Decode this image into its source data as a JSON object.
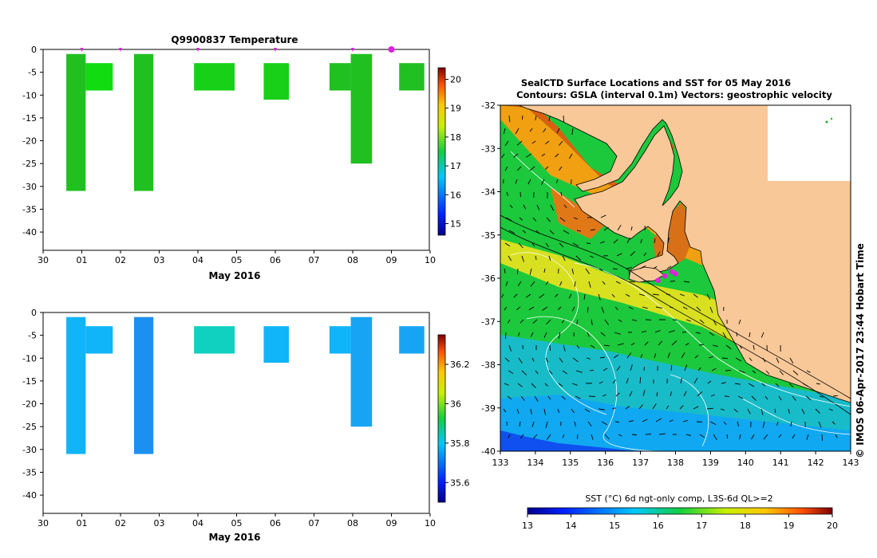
{
  "chart_data": [
    {
      "type": "heatmap",
      "title": "Q9900837  Temperature",
      "xlabel": "May 2016",
      "x_ticks": [
        "30",
        "01",
        "02",
        "03",
        "04",
        "05",
        "06",
        "07",
        "08",
        "09",
        "10"
      ],
      "y_ticks": [
        "0",
        "-5",
        "-10",
        "-15",
        "-20",
        "-25",
        "-30",
        "-35",
        "-40"
      ],
      "ylim": [
        -44,
        0
      ],
      "profile_markers_day": [
        1,
        2,
        4,
        6,
        8
      ],
      "current_marker_day": 9,
      "colorbar": {
        "min": 14.6,
        "max": 20.4,
        "ticks": [
          "15",
          "16",
          "17",
          "18",
          "19",
          "20"
        ]
      },
      "bars": [
        {
          "x0": 0.6,
          "x1": 1.1,
          "y0": -1,
          "y1": -31,
          "value": 17.0,
          "color": "#20c020"
        },
        {
          "x0": 1.1,
          "x1": 1.8,
          "y0": -3,
          "y1": -9,
          "value": 17.4,
          "color": "#10dc10"
        },
        {
          "x0": 2.35,
          "x1": 2.85,
          "y0": -1,
          "y1": -31,
          "value": 17.0,
          "color": "#20c020"
        },
        {
          "x0": 3.9,
          "x1": 4.95,
          "y0": -3,
          "y1": -9,
          "value": 17.2,
          "color": "#18d018"
        },
        {
          "x0": 5.7,
          "x1": 6.35,
          "y0": -3,
          "y1": -11,
          "value": 17.2,
          "color": "#18d018"
        },
        {
          "x0": 7.4,
          "x1": 7.95,
          "y0": -3,
          "y1": -9,
          "value": 17.0,
          "color": "#20c020"
        },
        {
          "x0": 7.95,
          "x1": 8.5,
          "y0": -1,
          "y1": -25,
          "value": 16.9,
          "color": "#20c020"
        },
        {
          "x0": 9.2,
          "x1": 9.85,
          "y0": -3,
          "y1": -9,
          "value": 17.0,
          "color": "#20c020"
        }
      ]
    },
    {
      "type": "heatmap",
      "title": "",
      "xlabel": "May 2016",
      "x_ticks": [
        "30",
        "01",
        "02",
        "03",
        "04",
        "05",
        "06",
        "07",
        "08",
        "09",
        "10"
      ],
      "y_ticks": [
        "0",
        "-5",
        "-10",
        "-15",
        "-20",
        "-25",
        "-30",
        "-35",
        "-40"
      ],
      "ylim": [
        -44,
        0
      ],
      "colorbar": {
        "min": 35.5,
        "max": 36.35,
        "ticks": [
          "35.6",
          "35.8",
          "36",
          "36.2"
        ]
      },
      "bars": [
        {
          "x0": 0.6,
          "x1": 1.1,
          "y0": -1,
          "y1": -31,
          "value": 35.85,
          "color": "#10b4f8"
        },
        {
          "x0": 1.1,
          "x1": 1.8,
          "y0": -3,
          "y1": -9,
          "value": 35.85,
          "color": "#10b4f8"
        },
        {
          "x0": 2.35,
          "x1": 2.85,
          "y0": -1,
          "y1": -31,
          "value": 35.75,
          "color": "#1c90f0"
        },
        {
          "x0": 3.9,
          "x1": 4.95,
          "y0": -3,
          "y1": -9,
          "value": 35.95,
          "color": "#10d0c0"
        },
        {
          "x0": 5.7,
          "x1": 6.35,
          "y0": -3,
          "y1": -11,
          "value": 35.85,
          "color": "#10b4f8"
        },
        {
          "x0": 7.4,
          "x1": 7.95,
          "y0": -3,
          "y1": -9,
          "value": 35.85,
          "color": "#10b4f8"
        },
        {
          "x0": 7.95,
          "x1": 8.5,
          "y0": -1,
          "y1": -25,
          "value": 35.8,
          "color": "#18a4f4"
        },
        {
          "x0": 9.2,
          "x1": 9.85,
          "y0": -3,
          "y1": -9,
          "value": 35.8,
          "color": "#18a4f4"
        }
      ]
    },
    {
      "type": "map",
      "title": "SealCTD Surface Locations and SST for 05 May 2016",
      "subtitle": "Contours: GSLA (interval 0.1m) Vectors: geostrophic velocity",
      "x_ticks": [
        "133",
        "134",
        "135",
        "136",
        "137",
        "138",
        "139",
        "140",
        "141",
        "142",
        "143"
      ],
      "y_ticks": [
        "-32",
        "-33",
        "-34",
        "-35",
        "-36",
        "-37",
        "-38",
        "-39",
        "-40"
      ],
      "xlim": [
        133,
        143
      ],
      "ylim": [
        -40,
        -32
      ],
      "sidebar_text": "© IMOS 06-Apr-2017 23:44 Hobart Time",
      "colorbar_label": "SST (°C) 6d ngt-only comp, L3S-6d QL>=2",
      "colorbar_ticks": [
        "13",
        "14",
        "15",
        "16",
        "17",
        "18",
        "19",
        "20"
      ],
      "colorbar_range": [
        13,
        20
      ],
      "seal_locations": [
        [
          137.5,
          -36.05
        ],
        [
          137.7,
          -35.95
        ],
        [
          137.9,
          -35.85
        ],
        [
          138.0,
          -35.9
        ]
      ],
      "land_color": "#f8c898"
    }
  ],
  "colors": {
    "land": "#f8c898",
    "marker": "#e020e0"
  }
}
